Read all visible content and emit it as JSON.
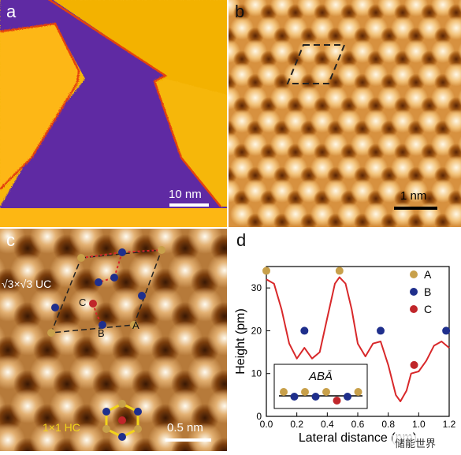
{
  "panels": {
    "a": {
      "label": "a",
      "scale_text": "10 nm"
    },
    "b": {
      "label": "b",
      "scale_text": "1 nm"
    },
    "c": {
      "label": "c",
      "uc_text": "√3×√3 UC",
      "hc_text": "1×1 HC",
      "scale_text": "0.5 nm",
      "site_A": "A",
      "site_B": "B",
      "site_C": "C"
    },
    "d": {
      "label": "d"
    }
  },
  "colors": {
    "A": "#c8a04a",
    "B": "#1f2f8c",
    "C": "#c0262a",
    "curve": "#d8282a",
    "ramp": [
      "#3a1a05",
      "#b06a1a",
      "#fff6e0"
    ]
  },
  "watermark": "储能世界",
  "chart_data": {
    "type": "scatter",
    "title": "",
    "xlabel": "Lateral distance (nm)",
    "ylabel": "Height (pm)",
    "xlim": [
      0,
      1.2
    ],
    "ylim": [
      0,
      35
    ],
    "xticks": [
      "0.0",
      "0.2",
      "0.4",
      "0.6",
      "0.8",
      "1.0",
      "1.2"
    ],
    "yticks": [
      "0",
      "10",
      "20",
      "30"
    ],
    "legend": [
      "A",
      "B",
      "C"
    ],
    "legend_position": "top-right",
    "series": [
      {
        "name": "A",
        "x": [
          0.0,
          0.48
        ],
        "y": [
          34,
          34
        ]
      },
      {
        "name": "B",
        "x": [
          0.25,
          0.75,
          1.18
        ],
        "y": [
          20,
          20,
          20
        ]
      },
      {
        "name": "C",
        "x": [
          0.97
        ],
        "y": [
          12
        ]
      }
    ],
    "curve": {
      "x": [
        0.0,
        0.05,
        0.1,
        0.15,
        0.2,
        0.25,
        0.3,
        0.35,
        0.4,
        0.45,
        0.48,
        0.52,
        0.56,
        0.6,
        0.65,
        0.7,
        0.75,
        0.8,
        0.85,
        0.88,
        0.92,
        0.95,
        1.0,
        1.05,
        1.1,
        1.15,
        1.2
      ],
      "y": [
        32,
        31,
        25,
        17,
        13.5,
        16,
        13.5,
        15,
        23,
        31,
        32.5,
        31,
        25,
        17,
        14,
        17,
        17.5,
        12,
        5,
        3.5,
        6,
        10,
        10.5,
        13,
        16.5,
        17.5,
        16
      ]
    },
    "inset": {
      "text": "ABĀ",
      "atoms": [
        "A",
        "B",
        "A",
        "B",
        "A",
        "C",
        "B",
        "A"
      ]
    }
  }
}
